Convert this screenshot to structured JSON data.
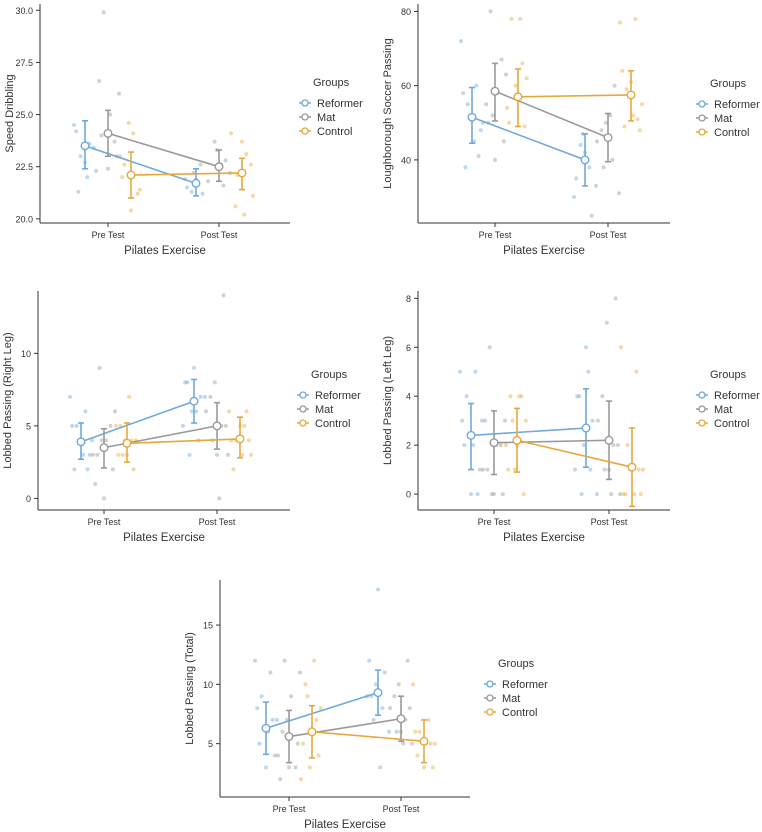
{
  "colors": {
    "reformer": "#6fa8dc",
    "mat": "#999999",
    "control": "#e6a83c",
    "axis": "#333333"
  },
  "legend": {
    "title": "Groups",
    "entries": [
      "Reformer",
      "Mat",
      "Control"
    ]
  },
  "chart_data": [
    {
      "type": "line",
      "id": "speed",
      "title": "",
      "xlabel": "Pilates Exercise",
      "ylabel": "Speed Dribbling",
      "categories": [
        "Pre Test",
        "Post Test"
      ],
      "ylim": [
        19.8,
        30.3
      ],
      "yticks": [
        20.0,
        22.5,
        25.0,
        27.5,
        30.0
      ],
      "ytick_labels": [
        "20.0",
        "22.5",
        "25.0",
        "27.5",
        "30.0"
      ],
      "series": [
        {
          "name": "Reformer",
          "values": [
            23.5,
            21.7
          ],
          "ci_low": [
            22.4,
            21.1
          ],
          "ci_high": [
            24.7,
            22.4
          ],
          "points": [
            [
              24.5,
              23.6,
              23.0,
              22.3,
              22.0,
              21.3,
              23.4,
              22.7,
              24.2
            ],
            [
              21.9,
              21.5,
              21.2,
              22.2,
              21.9,
              22.6,
              21.3
            ]
          ]
        },
        {
          "name": "Mat",
          "values": [
            24.1,
            22.5
          ],
          "ci_low": [
            23.0,
            21.8
          ],
          "ci_high": [
            25.2,
            23.3
          ],
          "points": [
            [
              29.9,
              26.0,
              25.0,
              24.0,
              23.0,
              22.4,
              26.6,
              23.7
            ],
            [
              22.8,
              23.3,
              21.8,
              21.6,
              23.7,
              22.2,
              22.6
            ]
          ]
        },
        {
          "name": "Control",
          "values": [
            22.1,
            22.2
          ],
          "ci_low": [
            21.0,
            21.4
          ],
          "ci_high": [
            23.2,
            22.9
          ],
          "points": [
            [
              24.1,
              22.6,
              21.4,
              20.4,
              22.0,
              21.2,
              24.6,
              23.0
            ],
            [
              24.1,
              23.1,
              22.1,
              21.1,
              20.2,
              20.6,
              22.6,
              23.7
            ]
          ]
        }
      ]
    },
    {
      "type": "line",
      "id": "loughborough",
      "title": "",
      "xlabel": "Pilates Exercise",
      "ylabel": "Loughborough Soccer Passing",
      "categories": [
        "Pre Test",
        "Post Test"
      ],
      "ylim": [
        23,
        82
      ],
      "yticks": [
        40,
        60,
        80
      ],
      "ytick_labels": [
        "40",
        "60",
        "80"
      ],
      "series": [
        {
          "name": "Reformer",
          "values": [
            51.5,
            40.0
          ],
          "ci_low": [
            44.5,
            33.0
          ],
          "ci_high": [
            59.5,
            47.0
          ],
          "points": [
            [
              72,
              60,
              55,
              50,
              45,
              38,
              48,
              52,
              58,
              41
            ],
            [
              42,
              35,
              25,
              47,
              30,
              38,
              44,
              33
            ]
          ]
        },
        {
          "name": "Mat",
          "values": [
            58.5,
            46.0
          ],
          "ci_low": [
            50.5,
            39.5
          ],
          "ci_high": [
            66.0,
            52.5
          ],
          "points": [
            [
              80,
              63,
              58,
              50,
              45,
              40,
              55,
              67,
              52
            ],
            [
              60,
              50,
              45,
              40,
              38,
              31,
              52,
              48
            ]
          ]
        },
        {
          "name": "Control",
          "values": [
            57.0,
            57.5
          ],
          "ci_low": [
            49.0,
            50.5
          ],
          "ci_high": [
            64.5,
            64.0
          ],
          "points": [
            [
              78,
              78,
              62,
              56,
              50,
              49,
              60,
              54,
              66
            ],
            [
              77,
              78,
              59,
              55,
              52,
              49,
              48,
              61,
              64,
              51
            ]
          ]
        }
      ]
    },
    {
      "type": "line",
      "id": "lobbed-right",
      "title": "",
      "xlabel": "Pilates Exercise",
      "ylabel": "Lobbed Passing (Right Leg)",
      "categories": [
        "Pre Test",
        "Post Test"
      ],
      "ylim": [
        -0.8,
        14.3
      ],
      "yticks": [
        0,
        5,
        10
      ],
      "ytick_labels": [
        "0",
        "5",
        "10"
      ],
      "series": [
        {
          "name": "Reformer",
          "values": [
            3.9,
            6.7
          ],
          "ci_low": [
            2.7,
            5.2
          ],
          "ci_high": [
            5.2,
            8.2
          ],
          "points": [
            [
              7,
              6,
              5,
              4,
              3,
              2,
              3,
              4,
              5,
              2
            ],
            [
              9,
              8,
              7,
              6,
              5,
              4,
              3,
              7,
              6,
              8
            ]
          ]
        },
        {
          "name": "Mat",
          "values": [
            3.5,
            5.0
          ],
          "ci_low": [
            2.1,
            3.4
          ],
          "ci_high": [
            4.8,
            6.6
          ],
          "points": [
            [
              9,
              6,
              4,
              3,
              2,
              0,
              1,
              5,
              4,
              3
            ],
            [
              14,
              8,
              6,
              5,
              4,
              3,
              0,
              7,
              5,
              3
            ]
          ]
        },
        {
          "name": "Control",
          "values": [
            3.8,
            4.1
          ],
          "ci_low": [
            2.5,
            2.8
          ],
          "ci_high": [
            5.2,
            5.6
          ],
          "points": [
            [
              7,
              5,
              4,
              3,
              3,
              2,
              4,
              5,
              4,
              3
            ],
            [
              6,
              5,
              4,
              3,
              3,
              2,
              4,
              5,
              4,
              6
            ]
          ]
        }
      ]
    },
    {
      "type": "line",
      "id": "lobbed-left",
      "title": "",
      "xlabel": "Pilates Exercise",
      "ylabel": "Lobbed Passing (Left Leg)",
      "categories": [
        "Pre Test",
        "Post Test"
      ],
      "ylim": [
        -0.65,
        8.3
      ],
      "yticks": [
        0,
        2,
        4,
        6,
        8
      ],
      "ytick_labels": [
        "0",
        "2",
        "4",
        "6",
        "8"
      ],
      "series": [
        {
          "name": "Reformer",
          "values": [
            2.4,
            2.7
          ],
          "ci_low": [
            1.0,
            1.1
          ],
          "ci_high": [
            3.7,
            4.3
          ],
          "points": [
            [
              5,
              5,
              4,
              3,
              2,
              2,
              1,
              0,
              3,
              0
            ],
            [
              6,
              4,
              3,
              2,
              1,
              1,
              0,
              0,
              5,
              4
            ]
          ]
        },
        {
          "name": "Mat",
          "values": [
            2.1,
            2.2
          ],
          "ci_low": [
            0.8,
            0.6
          ],
          "ci_high": [
            3.4,
            3.8
          ],
          "points": [
            [
              6,
              3,
              2,
              1,
              0,
              0,
              3,
              2,
              0,
              1
            ],
            [
              8,
              7,
              3,
              2,
              1,
              0,
              0,
              4,
              2,
              1
            ]
          ]
        },
        {
          "name": "Control",
          "values": [
            2.2,
            1.1
          ],
          "ci_low": [
            0.9,
            -0.5
          ],
          "ci_high": [
            3.5,
            2.7
          ],
          "points": [
            [
              4,
              4,
              3,
              2,
              1,
              0,
              1,
              2,
              4,
              3
            ],
            [
              6,
              5,
              2,
              1,
              0,
              0,
              0,
              1,
              0,
              1
            ]
          ]
        }
      ]
    },
    {
      "type": "line",
      "id": "lobbed-total",
      "title": "",
      "xlabel": "Pilates Exercise",
      "ylabel": "Lobbed Passing (Total)",
      "categories": [
        "Pre Test",
        "Post Test"
      ],
      "ylim": [
        0.5,
        18.8
      ],
      "yticks": [
        5,
        10,
        15
      ],
      "ytick_labels": [
        "5",
        "10",
        "15"
      ],
      "series": [
        {
          "name": "Reformer",
          "values": [
            6.3,
            9.3
          ],
          "ci_low": [
            4.1,
            7.4
          ],
          "ci_high": [
            8.5,
            11.2
          ],
          "points": [
            [
              12,
              11,
              9,
              7,
              6,
              5,
              4,
              3,
              8,
              7
            ],
            [
              18,
              12,
              11,
              10,
              9,
              8,
              7,
              6,
              3,
              9
            ]
          ]
        },
        {
          "name": "Mat",
          "values": [
            5.6,
            7.1
          ],
          "ci_low": [
            3.4,
            5.2
          ],
          "ci_high": [
            7.8,
            9.0
          ],
          "points": [
            [
              12,
              11,
              9,
              6,
              5,
              3,
              2,
              3,
              7,
              4
            ],
            [
              12,
              10,
              8,
              7,
              6,
              5,
              5,
              9,
              8,
              6
            ]
          ]
        },
        {
          "name": "Control",
          "values": [
            6.0,
            5.2
          ],
          "ci_low": [
            3.8,
            3.4
          ],
          "ci_high": [
            8.2,
            7.0
          ],
          "points": [
            [
              12,
              10,
              8,
              6,
              5,
              4,
              3,
              2,
              7,
              9
            ],
            [
              10,
              7,
              6,
              5,
              5,
              4,
              3,
              3,
              6,
              5
            ]
          ]
        }
      ]
    }
  ]
}
